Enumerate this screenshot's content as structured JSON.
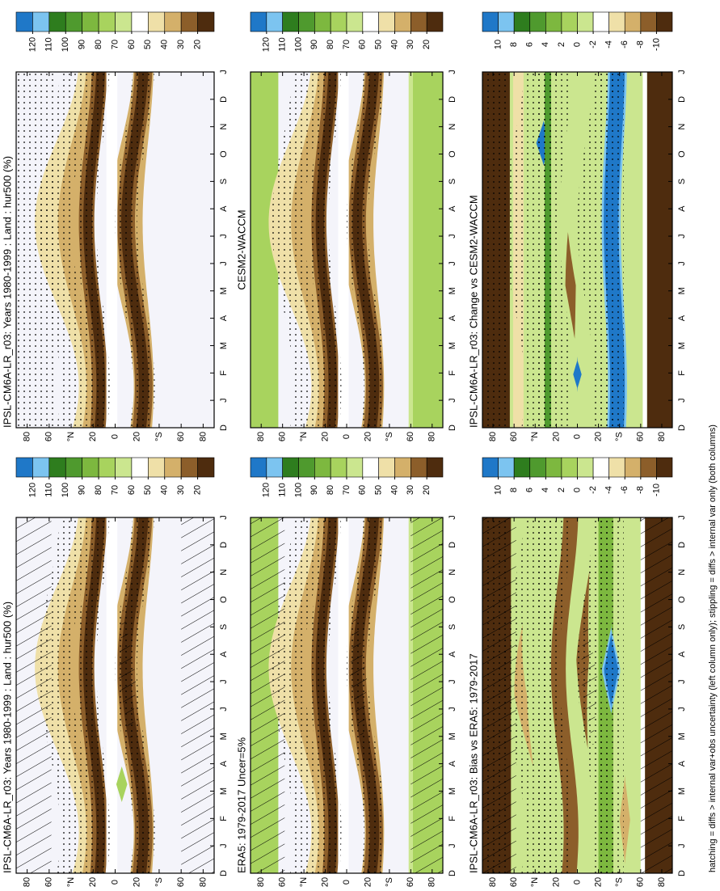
{
  "chart_data": [
    {
      "type": "contour",
      "title": "IPSL-CM6A-LR_r03: Years 1980-1999 : Land : hur500 (%)",
      "categories": [
        "D",
        "J",
        "F",
        "M",
        "A",
        "M",
        "J",
        "J",
        "A",
        "S",
        "O",
        "N",
        "D",
        "J"
      ],
      "ylim": [
        90,
        -90
      ],
      "yticks": [
        80,
        60,
        {
          "value": 40,
          "label": "°N"
        },
        20,
        0,
        {
          "value": -20,
          "label": "20"
        },
        {
          "value": -40,
          "label": "°S"
        },
        {
          "value": -60,
          "label": "60"
        },
        {
          "value": -80,
          "label": "80"
        }
      ],
      "colorbar_ticks": [
        120,
        110,
        100,
        90,
        80,
        70,
        60,
        50,
        40,
        30,
        20
      ],
      "colorbar_colors": [
        "#1f78c8",
        "#7cc4f0",
        "#2e7d1e",
        "#4f9a2e",
        "#7db83f",
        "#a8d35e",
        "#cbe68f",
        "#ffffff",
        "#efe0a8",
        "#d4b06a",
        "#8c5e2a",
        "#4e2c0e"
      ],
      "hatching": true,
      "stippling": true
    },
    {
      "type": "contour",
      "title": "IPSL-CM6A-LR_r03: Years 1980-1999 : Land : hur500 (%)",
      "categories": [
        "D",
        "J",
        "F",
        "M",
        "A",
        "M",
        "J",
        "J",
        "A",
        "S",
        "O",
        "N",
        "D",
        "J"
      ],
      "ylim": [
        90,
        -90
      ],
      "yticks": [
        80,
        60,
        {
          "value": 40,
          "label": "°N"
        },
        20,
        0,
        {
          "value": -20,
          "label": "20"
        },
        {
          "value": -40,
          "label": "°S"
        },
        {
          "value": -60,
          "label": "60"
        },
        {
          "value": -80,
          "label": "80"
        }
      ],
      "colorbar_ticks": [
        120,
        110,
        100,
        90,
        80,
        70,
        60,
        50,
        40,
        30,
        20
      ],
      "colorbar_colors": [
        "#1f78c8",
        "#7cc4f0",
        "#2e7d1e",
        "#4f9a2e",
        "#7db83f",
        "#a8d35e",
        "#cbe68f",
        "#ffffff",
        "#efe0a8",
        "#d4b06a",
        "#8c5e2a",
        "#4e2c0e"
      ],
      "hatching": false,
      "stippling": true
    },
    {
      "type": "contour",
      "title": "ERA5: 1979-2017 Uncer=5%",
      "categories": [
        "D",
        "J",
        "F",
        "M",
        "A",
        "M",
        "J",
        "J",
        "A",
        "S",
        "O",
        "N",
        "D",
        "J"
      ],
      "ylim": [
        90,
        -90
      ],
      "yticks": [
        80,
        60,
        {
          "value": 40,
          "label": "°N"
        },
        20,
        0,
        {
          "value": -20,
          "label": "20"
        },
        {
          "value": -40,
          "label": "°S"
        },
        {
          "value": -60,
          "label": "60"
        },
        {
          "value": -80,
          "label": "80"
        }
      ],
      "colorbar_ticks": [
        120,
        110,
        100,
        90,
        80,
        70,
        60,
        50,
        40,
        30,
        20
      ],
      "colorbar_colors": [
        "#1f78c8",
        "#7cc4f0",
        "#2e7d1e",
        "#4f9a2e",
        "#7db83f",
        "#a8d35e",
        "#cbe68f",
        "#ffffff",
        "#efe0a8",
        "#d4b06a",
        "#8c5e2a",
        "#4e2c0e"
      ],
      "hatching": true,
      "stippling": true
    },
    {
      "type": "contour",
      "title": "CESM2-WACCM",
      "categories": [
        "D",
        "J",
        "F",
        "M",
        "A",
        "M",
        "J",
        "J",
        "A",
        "S",
        "O",
        "N",
        "D",
        "J"
      ],
      "ylim": [
        90,
        -90
      ],
      "yticks": [
        80,
        60,
        {
          "value": 40,
          "label": "°N"
        },
        20,
        0,
        {
          "value": -20,
          "label": "20"
        },
        {
          "value": -40,
          "label": "°S"
        },
        {
          "value": -60,
          "label": "60"
        },
        {
          "value": -80,
          "label": "80"
        }
      ],
      "colorbar_ticks": [
        120,
        110,
        100,
        90,
        80,
        70,
        60,
        50,
        40,
        30,
        20
      ],
      "colorbar_colors": [
        "#1f78c8",
        "#7cc4f0",
        "#2e7d1e",
        "#4f9a2e",
        "#7db83f",
        "#a8d35e",
        "#cbe68f",
        "#ffffff",
        "#efe0a8",
        "#d4b06a",
        "#8c5e2a",
        "#4e2c0e"
      ],
      "hatching": false,
      "stippling": true
    },
    {
      "type": "contour",
      "title": "IPSL-CM6A-LR_r03: Bias vs ERA5: 1979-2017",
      "categories": [
        "D",
        "J",
        "F",
        "M",
        "A",
        "M",
        "J",
        "J",
        "A",
        "S",
        "O",
        "N",
        "D",
        "J"
      ],
      "ylim": [
        90,
        -90
      ],
      "yticks": [
        80,
        60,
        {
          "value": 40,
          "label": "°N"
        },
        20,
        0,
        {
          "value": -20,
          "label": "20"
        },
        {
          "value": -40,
          "label": "°S"
        },
        {
          "value": -60,
          "label": "60"
        },
        {
          "value": -80,
          "label": "80"
        }
      ],
      "colorbar_ticks": [
        10,
        8,
        6,
        4,
        2,
        0,
        -2,
        -4,
        -6,
        -8,
        -10
      ],
      "colorbar_colors": [
        "#1f78c8",
        "#7cc4f0",
        "#2e7d1e",
        "#4f9a2e",
        "#7db83f",
        "#a8d35e",
        "#cbe68f",
        "#ffffff",
        "#efe0a8",
        "#d4b06a",
        "#8c5e2a",
        "#4e2c0e"
      ],
      "hatching": true,
      "stippling": true
    },
    {
      "type": "contour",
      "title": "IPSL-CM6A-LR_r03: Change vs CESM2-WACCM",
      "categories": [
        "D",
        "J",
        "F",
        "M",
        "A",
        "M",
        "J",
        "J",
        "A",
        "S",
        "O",
        "N",
        "D",
        "J"
      ],
      "ylim": [
        90,
        -90
      ],
      "yticks": [
        80,
        60,
        {
          "value": 40,
          "label": "°N"
        },
        20,
        0,
        {
          "value": -20,
          "label": "20"
        },
        {
          "value": -40,
          "label": "°S"
        },
        {
          "value": -60,
          "label": "60"
        },
        {
          "value": -80,
          "label": "80"
        }
      ],
      "colorbar_ticks": [
        10,
        8,
        6,
        4,
        2,
        0,
        -2,
        -4,
        -6,
        -8,
        -10
      ],
      "colorbar_colors": [
        "#1f78c8",
        "#7cc4f0",
        "#2e7d1e",
        "#4f9a2e",
        "#7db83f",
        "#a8d35e",
        "#cbe68f",
        "#ffffff",
        "#efe0a8",
        "#d4b06a",
        "#8c5e2a",
        "#4e2c0e"
      ],
      "hatching": false,
      "stippling": true
    }
  ],
  "footer": "hatching = diffs > internal var+obs uncertainty (left column only); stippling = diffs > internal var only (both columns)"
}
